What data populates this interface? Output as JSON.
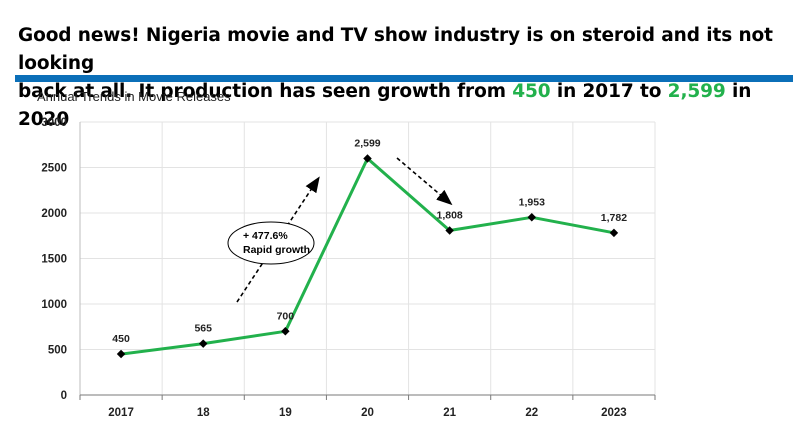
{
  "headline": {
    "line1": "Good news! Nigeria movie and TV show industry is on steroid and its not looking",
    "line2_pre": "back at all. It production has seen growth from ",
    "line2_v1": "450",
    "line2_mid": " in 2017 to ",
    "line2_v2": "2,599",
    "line2_post": " in 2020"
  },
  "colors": {
    "accent_green": "#22b14c",
    "rule_blue": "#0b6fb8",
    "line": "#22b14c"
  },
  "chart_data": {
    "type": "line",
    "title": "Annual Trends in Movie Releases",
    "categories": [
      "2017",
      "18",
      "19",
      "20",
      "21",
      "22",
      "2023"
    ],
    "values": [
      450,
      565,
      700,
      2599,
      1808,
      1953,
      1782
    ],
    "data_labels": [
      "450",
      "565",
      "700",
      "2,599",
      "1,808",
      "1,953",
      "1,782"
    ],
    "ylim": [
      0,
      3000
    ],
    "yticks": [
      "0",
      "500",
      "1000",
      "1500",
      "2000",
      "2500",
      "3000"
    ],
    "grid": true,
    "xlabel": "",
    "ylabel": "",
    "annotation": {
      "line1": "+ 477.6%",
      "line2": "Rapid growth"
    }
  }
}
